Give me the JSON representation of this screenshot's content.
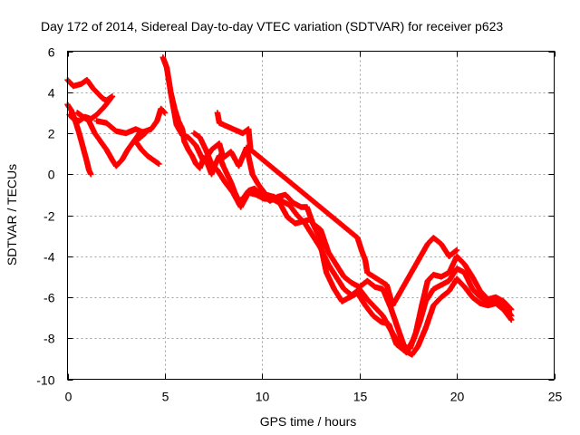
{
  "chart_data": {
    "type": "scatter",
    "title": "Day 172 of 2014, Sidereal Day-to-day VTEC variation (SDTVAR) for receiver p623",
    "xlabel": "GPS time / hours",
    "ylabel": "SDTVAR / TECUs",
    "xlim": [
      0,
      25
    ],
    "ylim": [
      -10,
      6
    ],
    "xticks": [
      "0",
      "5",
      "10",
      "15",
      "20",
      "25"
    ],
    "yticks": [
      "-10",
      "-8",
      "-6",
      "-4",
      "-2",
      "0",
      "2",
      "4",
      "6"
    ],
    "grid": true,
    "marker": "+",
    "color": "#ff0000",
    "series": [
      {
        "name": "track-a",
        "points": [
          [
            0,
            4.6
          ],
          [
            0.3,
            4.3
          ],
          [
            0.7,
            4.4
          ],
          [
            1.0,
            4.6
          ],
          [
            1.3,
            4.2
          ],
          [
            1.6,
            3.9
          ],
          [
            1.8,
            3.7
          ],
          [
            2.0,
            3.6
          ],
          [
            2.3,
            3.8
          ],
          [
            1.9,
            3.3
          ],
          [
            1.5,
            2.9
          ],
          [
            1.2,
            2.7
          ],
          [
            0.9,
            2.8
          ],
          [
            0.6,
            2.6
          ],
          [
            0.3,
            2.7
          ],
          [
            0.1,
            2.9
          ]
        ]
      },
      {
        "name": "track-b",
        "points": [
          [
            0,
            3.4
          ],
          [
            0.2,
            3.1
          ],
          [
            0.4,
            2.6
          ],
          [
            0.6,
            2.0
          ],
          [
            0.8,
            1.3
          ],
          [
            1.0,
            0.6
          ],
          [
            1.1,
            0.2
          ],
          [
            1.2,
            0.0
          ]
        ]
      },
      {
        "name": "track-c",
        "points": [
          [
            0.5,
            3.0
          ],
          [
            0.8,
            2.8
          ],
          [
            1.1,
            2.6
          ],
          [
            1.4,
            2.0
          ],
          [
            1.7,
            1.6
          ],
          [
            2.0,
            1.2
          ],
          [
            2.3,
            0.7
          ],
          [
            2.5,
            0.4
          ],
          [
            2.8,
            0.7
          ],
          [
            3.1,
            1.2
          ],
          [
            3.4,
            1.6
          ],
          [
            3.7,
            2.0
          ],
          [
            4.0,
            2.1
          ],
          [
            4.3,
            2.2
          ],
          [
            4.6,
            2.6
          ],
          [
            4.8,
            3.2
          ],
          [
            5.0,
            3.0
          ]
        ]
      },
      {
        "name": "track-d",
        "points": [
          [
            1.5,
            2.6
          ],
          [
            2.0,
            2.5
          ],
          [
            2.5,
            2.1
          ],
          [
            3.0,
            2.0
          ],
          [
            3.5,
            2.2
          ],
          [
            4.0,
            2.0
          ],
          [
            3.5,
            1.6
          ],
          [
            3.8,
            1.2
          ],
          [
            4.1,
            0.9
          ],
          [
            4.4,
            0.7
          ],
          [
            4.7,
            0.5
          ]
        ]
      },
      {
        "name": "track-e",
        "points": [
          [
            4.9,
            5.7
          ],
          [
            5.1,
            5.2
          ],
          [
            5.2,
            4.6
          ],
          [
            5.3,
            4.0
          ],
          [
            5.5,
            3.2
          ],
          [
            5.7,
            2.6
          ],
          [
            5.9,
            2.2
          ],
          [
            6.0,
            1.6
          ],
          [
            6.2,
            1.2
          ],
          [
            6.4,
            0.9
          ],
          [
            6.6,
            0.5
          ],
          [
            6.8,
            0.3
          ],
          [
            7.0,
            0.8
          ],
          [
            7.2,
            0.5
          ],
          [
            7.4,
            0.0
          ],
          [
            7.6,
            0.5
          ],
          [
            7.8,
            0.9
          ],
          [
            8.0,
            0.4
          ],
          [
            8.2,
            0.0
          ],
          [
            8.4,
            -0.4
          ],
          [
            8.6,
            -0.9
          ],
          [
            8.8,
            -1.3
          ],
          [
            9.0,
            -1.2
          ],
          [
            9.3,
            -0.8
          ],
          [
            9.6,
            -0.7
          ],
          [
            10.0,
            -1.0
          ],
          [
            10.4,
            -1.3
          ],
          [
            10.8,
            -1.1
          ],
          [
            11.2,
            -1.0
          ],
          [
            11.6,
            -1.4
          ],
          [
            12.0,
            -1.6
          ],
          [
            12.3,
            -1.6
          ],
          [
            12.6,
            -2.4
          ],
          [
            13.0,
            -2.7
          ],
          [
            13.4,
            -3.8
          ],
          [
            13.8,
            -4.4
          ],
          [
            14.2,
            -5.0
          ],
          [
            14.6,
            -5.3
          ],
          [
            15.0,
            -5.5
          ],
          [
            15.4,
            -5.2
          ],
          [
            15.8,
            -5.5
          ],
          [
            16.2,
            -5.6
          ],
          [
            16.6,
            -6.5
          ],
          [
            17.0,
            -7.6
          ],
          [
            17.3,
            -8.4
          ],
          [
            17.6,
            -8.5
          ],
          [
            17.9,
            -7.7
          ],
          [
            18.2,
            -6.4
          ],
          [
            18.5,
            -5.2
          ],
          [
            18.8,
            -4.9
          ],
          [
            19.2,
            -5.0
          ],
          [
            19.6,
            -4.8
          ],
          [
            20.0,
            -4.0
          ],
          [
            20.4,
            -4.4
          ],
          [
            20.8,
            -5.0
          ],
          [
            21.2,
            -5.7
          ],
          [
            21.6,
            -6.1
          ],
          [
            22.0,
            -6.0
          ],
          [
            22.4,
            -6.2
          ],
          [
            22.8,
            -6.6
          ]
        ]
      },
      {
        "name": "track-f",
        "points": [
          [
            5.3,
            4.0
          ],
          [
            5.6,
            2.4
          ],
          [
            5.9,
            1.9
          ],
          [
            6.2,
            1.8
          ],
          [
            6.6,
            1.4
          ],
          [
            7.0,
            0.6
          ],
          [
            7.4,
            1.2
          ],
          [
            7.8,
            1.5
          ],
          [
            8.0,
            0.8
          ],
          [
            8.4,
            1.1
          ],
          [
            8.8,
            0.4
          ],
          [
            9.2,
            1.3
          ],
          [
            9.5,
            0.0
          ],
          [
            9.8,
            -0.5
          ],
          [
            10.2,
            -1.0
          ],
          [
            10.6,
            -1.1
          ],
          [
            11.0,
            -1.3
          ],
          [
            11.4,
            -1.5
          ],
          [
            11.8,
            -2.0
          ],
          [
            12.2,
            -2.4
          ],
          [
            12.6,
            -3.0
          ],
          [
            13.0,
            -3.6
          ],
          [
            13.4,
            -4.4
          ],
          [
            13.8,
            -5.0
          ],
          [
            14.2,
            -5.6
          ],
          [
            14.6,
            -5.9
          ],
          [
            15.0,
            -5.6
          ],
          [
            15.4,
            -6.1
          ],
          [
            15.8,
            -6.5
          ],
          [
            16.2,
            -6.9
          ],
          [
            16.6,
            -7.6
          ],
          [
            17.0,
            -8.2
          ],
          [
            17.4,
            -8.7
          ],
          [
            17.8,
            -8.0
          ],
          [
            18.1,
            -7.2
          ],
          [
            18.4,
            -6.2
          ],
          [
            18.8,
            -5.6
          ],
          [
            19.2,
            -5.4
          ],
          [
            19.6,
            -5.2
          ],
          [
            20.0,
            -4.6
          ],
          [
            20.4,
            -4.8
          ],
          [
            20.8,
            -5.6
          ],
          [
            21.2,
            -6.0
          ],
          [
            21.6,
            -6.2
          ],
          [
            22.0,
            -6.1
          ],
          [
            22.4,
            -6.4
          ],
          [
            22.8,
            -6.9
          ]
        ]
      },
      {
        "name": "track-g",
        "points": [
          [
            6.5,
            2.0
          ],
          [
            6.8,
            1.8
          ],
          [
            7.1,
            1.2
          ],
          [
            7.4,
            0.5
          ],
          [
            7.7,
            0.2
          ],
          [
            8.1,
            -0.4
          ],
          [
            8.5,
            -0.9
          ],
          [
            8.9,
            -1.6
          ],
          [
            9.3,
            -0.9
          ],
          [
            9.7,
            -1.0
          ],
          [
            10.1,
            -1.2
          ],
          [
            10.5,
            -1.2
          ],
          [
            10.9,
            -1.4
          ],
          [
            11.3,
            -2.1
          ],
          [
            11.7,
            -2.4
          ],
          [
            12.1,
            -2.3
          ],
          [
            12.5,
            -2.2
          ],
          [
            12.9,
            -3.0
          ],
          [
            13.3,
            -4.8
          ],
          [
            13.7,
            -5.6
          ],
          [
            14.1,
            -6.2
          ],
          [
            14.5,
            -6.0
          ],
          [
            14.9,
            -5.8
          ],
          [
            15.3,
            -6.4
          ],
          [
            15.7,
            -6.9
          ],
          [
            16.1,
            -7.2
          ],
          [
            16.5,
            -7.3
          ],
          [
            16.9,
            -8.3
          ],
          [
            17.3,
            -8.6
          ],
          [
            17.7,
            -8.8
          ],
          [
            18.0,
            -8.4
          ],
          [
            18.4,
            -7.5
          ],
          [
            18.8,
            -6.4
          ],
          [
            19.2,
            -6.0
          ],
          [
            19.6,
            -5.7
          ],
          [
            20.0,
            -5.1
          ],
          [
            20.4,
            -5.5
          ],
          [
            20.8,
            -6.0
          ],
          [
            21.2,
            -6.3
          ],
          [
            21.6,
            -6.4
          ],
          [
            22.0,
            -6.3
          ],
          [
            22.4,
            -6.6
          ],
          [
            22.8,
            -7.1
          ]
        ]
      },
      {
        "name": "track-h",
        "points": [
          [
            7.7,
            3.0
          ],
          [
            7.8,
            2.5
          ],
          [
            9.0,
            2.0
          ],
          [
            9.3,
            2.2
          ],
          [
            9.4,
            1.2
          ],
          [
            14.9,
            -3.1
          ],
          [
            15.1,
            -3.7
          ],
          [
            15.3,
            -4.2
          ],
          [
            15.4,
            -4.8
          ],
          [
            16.4,
            -5.4
          ],
          [
            16.7,
            -6.4
          ],
          [
            18.5,
            -3.4
          ],
          [
            18.8,
            -3.1
          ],
          [
            19.2,
            -3.4
          ],
          [
            19.6,
            -4.0
          ],
          [
            20.0,
            -3.7
          ]
        ]
      }
    ]
  }
}
